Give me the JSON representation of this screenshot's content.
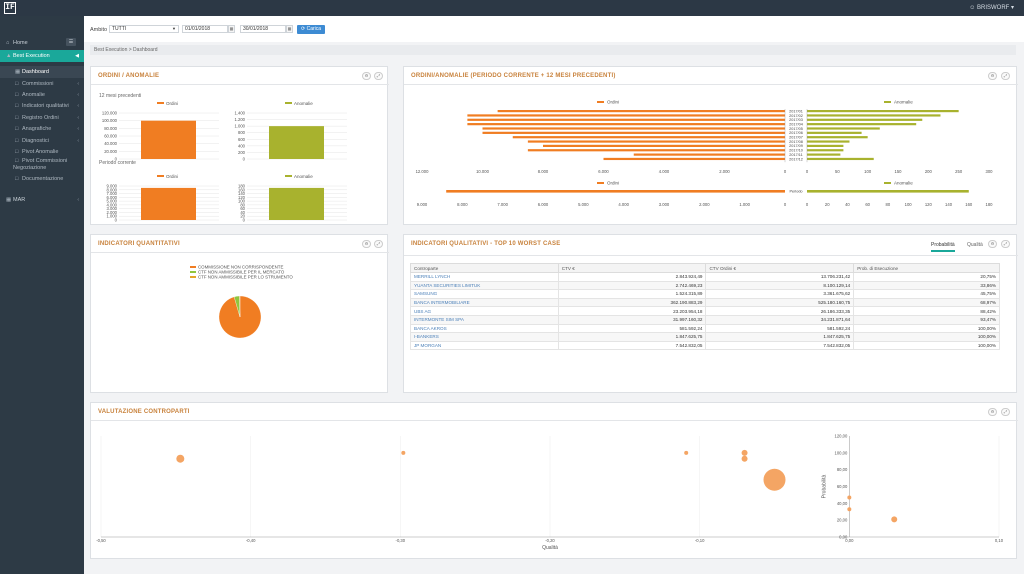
{
  "app": {
    "logo": "IF",
    "user": "BRISWORF ▾"
  },
  "sidebar": {
    "items": [
      {
        "label": "Home",
        "icon": "home-icon"
      },
      {
        "label": "Best Execution",
        "icon": "chart-icon"
      },
      {
        "label": "Dashboard",
        "icon": "dashboard-icon"
      },
      {
        "label": "Commissioni",
        "icon": "doc-icon"
      },
      {
        "label": "Anomalie",
        "icon": "doc-icon"
      },
      {
        "label": "Indicatori qualitativi",
        "icon": "doc-icon"
      },
      {
        "label": "Registro Ordini",
        "icon": "doc-icon"
      },
      {
        "label": "Anagrafiche",
        "icon": "doc-icon"
      },
      {
        "label": "Diagnostici",
        "icon": "doc-icon"
      },
      {
        "label": "Pivot Anomalie",
        "icon": "doc-icon"
      },
      {
        "label": "Pivot Commissioni",
        "icon": "doc-icon"
      },
      {
        "label": "Negoziazione",
        "icon": ""
      },
      {
        "label": "Documentazione",
        "icon": "doc-icon"
      },
      {
        "label": "MAR",
        "icon": "grid-icon"
      }
    ]
  },
  "filters": {
    "ambito_label": "Ambito",
    "ambito_value": "TUTTI",
    "date_from": "01/01/2018",
    "date_to": "30/01/2018",
    "load_button": "Carica"
  },
  "breadcrumb": "Best Execution > Dashboard",
  "panels": {
    "ordini_anomalie": {
      "title": "ORDINI / ANOMALIE",
      "caption_prev": "12 mesi precedenti",
      "caption_curr": "Periodo corrente",
      "legend_ordini": "Ordini",
      "legend_anomalie": "Anomalie",
      "ticks_prev_ordini": [
        "120.000",
        "100.000",
        "80.000",
        "60.000",
        "40.000",
        "20.000",
        "0"
      ],
      "ticks_prev_anom": [
        "1.400",
        "1.200",
        "1.000",
        "800",
        "600",
        "400",
        "200",
        "0"
      ],
      "ticks_curr_ordini": [
        "9.000",
        "8.000",
        "7.000",
        "6.000",
        "5.000",
        "4.000",
        "3.000",
        "2.000",
        "1.000",
        "0"
      ],
      "ticks_curr_anom": [
        "180",
        "160",
        "140",
        "120",
        "100",
        "80",
        "60",
        "40",
        "20",
        "0"
      ]
    },
    "periodo": {
      "title": "ORDINI/ANOMALIE (PERIODO CORRENTE + 12 MESI PRECEDENTI)",
      "legend_ordini": "Ordini",
      "legend_anomalie": "Anomalie",
      "months": [
        "2017/01",
        "2017/02",
        "2017/03",
        "2017/04",
        "2017/05",
        "2017/06",
        "2017/07",
        "2017/08",
        "2017/09",
        "2017/10",
        "2017/11",
        "2017/12"
      ],
      "period_label": "Periodo",
      "ticks_top_left": [
        "12.000",
        "10.000",
        "8.000",
        "6.000",
        "4.000",
        "2.000",
        "0"
      ],
      "ticks_top_right": [
        "0",
        "50",
        "100",
        "150",
        "200",
        "250",
        "300"
      ],
      "ticks_bot_left": [
        "9.000",
        "8.000",
        "7.000",
        "6.000",
        "5.000",
        "4.000",
        "3.000",
        "2.000",
        "1.000",
        "0"
      ],
      "ticks_bot_right": [
        "0",
        "20",
        "40",
        "60",
        "80",
        "100",
        "120",
        "140",
        "160",
        "180"
      ]
    },
    "quantitativi": {
      "title": "INDICATORI QUANTITATIVI",
      "legend": [
        "COMMISSIONE NON CORRISPONDENTE",
        "CTF NON AMMISSIBILE PER IL MERCATO",
        "CTF NON AMMISSIBILE PER LO STRUMENTO"
      ]
    },
    "qualitativi": {
      "title": "INDICATORI QUALITATIVI - TOP 10 WORST CASE",
      "tab_prob": "Probabilità",
      "tab_qual": "Qualità",
      "headers": [
        "Controparte",
        "CTV €",
        "CTV Ordini €",
        "Prob. di Esecuzione"
      ],
      "rows": [
        [
          "MERRILL LYNCH",
          "2.843.924,49",
          "13.706.231,42",
          "20,75%"
        ],
        [
          "YUANTA SECURITIES LIMITUK",
          "2.742.469,23",
          "8.100.129,14",
          "33,86%"
        ],
        [
          "SAMSUNG",
          "1.524.315,89",
          "3.361.675,62",
          "45,75%"
        ],
        [
          "BANCA INTERMOBILIARE",
          "362.190.883,29",
          "525.180.160,75",
          "68,97%"
        ],
        [
          "UBS AG",
          "23.203.954,18",
          "26.186.333,35",
          "88,42%"
        ],
        [
          "INTERMONTE SIM SPA",
          "31.997.160,32",
          "34.231.871,64",
          "93,47%"
        ],
        [
          "BANCA AKROS",
          "581.592,24",
          "581.592,24",
          "100,00%"
        ],
        [
          "I-BANKERS",
          "1.847.625,75",
          "1.847.625,75",
          "100,00%"
        ],
        [
          "JP MORGAN",
          "7.542.832,05",
          "7.542.832,05",
          "100,00%"
        ]
      ]
    },
    "valutazione": {
      "title": "VALUTAZIONE CONTROPARTI",
      "xlabel": "Qualità",
      "ylabel": "Probabilità",
      "x_ticks": [
        "-0,50",
        "-0,40",
        "-0,30",
        "-0,20",
        "-0,10",
        "0,00",
        "0,10"
      ],
      "y_ticks": [
        "120,00",
        "100,00",
        "80,00",
        "60,00",
        "40,00",
        "20,00",
        "0,00"
      ]
    }
  },
  "chart_data": [
    {
      "type": "bar",
      "title": "ORDINI / ANOMALIE",
      "series": [
        {
          "name": "Ordini",
          "group": "12 mesi precedenti",
          "values": [
            100000
          ],
          "ylim": [
            0,
            120000
          ]
        },
        {
          "name": "Anomalie",
          "group": "12 mesi precedenti",
          "values": [
            1000
          ],
          "ylim": [
            0,
            1400
          ]
        },
        {
          "name": "Ordini",
          "group": "Periodo corrente",
          "values": [
            8500
          ],
          "ylim": [
            0,
            9000
          ]
        },
        {
          "name": "Anomalie",
          "group": "Periodo corrente",
          "values": [
            170
          ],
          "ylim": [
            0,
            180
          ]
        }
      ],
      "colors": {
        "Ordini": "#f07d22",
        "Anomalie": "#a8b22e"
      }
    },
    {
      "type": "bar",
      "title": "ORDINI/ANOMALIE (PERIODO CORRENTE + 12 MESI PRECEDENTI)",
      "orientation": "horizontal",
      "categories": [
        "2017/01",
        "2017/02",
        "2017/03",
        "2017/04",
        "2017/05",
        "2017/06",
        "2017/07",
        "2017/08",
        "2017/09",
        "2017/10",
        "2017/11",
        "2017/12"
      ],
      "series": [
        {
          "name": "Ordini",
          "values": [
            9500,
            10500,
            10500,
            10500,
            10000,
            10000,
            9000,
            8500,
            8000,
            8500,
            5000,
            6000
          ]
        },
        {
          "name": "Anomalie",
          "values": [
            250,
            220,
            190,
            180,
            120,
            90,
            100,
            70,
            60,
            60,
            55,
            110
          ]
        }
      ],
      "period": {
        "Ordini": 8400,
        "Anomalie": 160
      },
      "xlim_ordini": [
        0,
        12000
      ],
      "xlim_anomalie": [
        0,
        300
      ]
    },
    {
      "type": "pie",
      "title": "INDICATORI QUANTITATIVI",
      "categories": [
        "COMMISSIONE NON CORRISPONDENTE",
        "CTF NON AMMISSIBILE PER IL MERCATO",
        "CTF NON AMMISSIBILE PER LO STRUMENTO"
      ],
      "values": [
        96,
        4,
        0.5
      ],
      "colors": [
        "#f07d22",
        "#8ec63f",
        "#e3a52b"
      ]
    },
    {
      "type": "scatter",
      "title": "VALUTAZIONE CONTROPARTI",
      "xlabel": "Qualità",
      "ylabel": "Probabilità",
      "xlim": [
        -0.5,
        0.1
      ],
      "ylim": [
        0,
        120
      ],
      "points": [
        {
          "x": -0.447,
          "y": 93,
          "size": 4
        },
        {
          "x": -0.298,
          "y": 100,
          "size": 2
        },
        {
          "x": -0.109,
          "y": 100,
          "size": 2
        },
        {
          "x": -0.07,
          "y": 100,
          "size": 3
        },
        {
          "x": -0.07,
          "y": 93,
          "size": 3
        },
        {
          "x": -0.05,
          "y": 68,
          "size": 11
        },
        {
          "x": 0.0,
          "y": 47,
          "size": 2
        },
        {
          "x": 0.0,
          "y": 33,
          "size": 2
        },
        {
          "x": 0.03,
          "y": 21,
          "size": 3
        }
      ]
    }
  ]
}
